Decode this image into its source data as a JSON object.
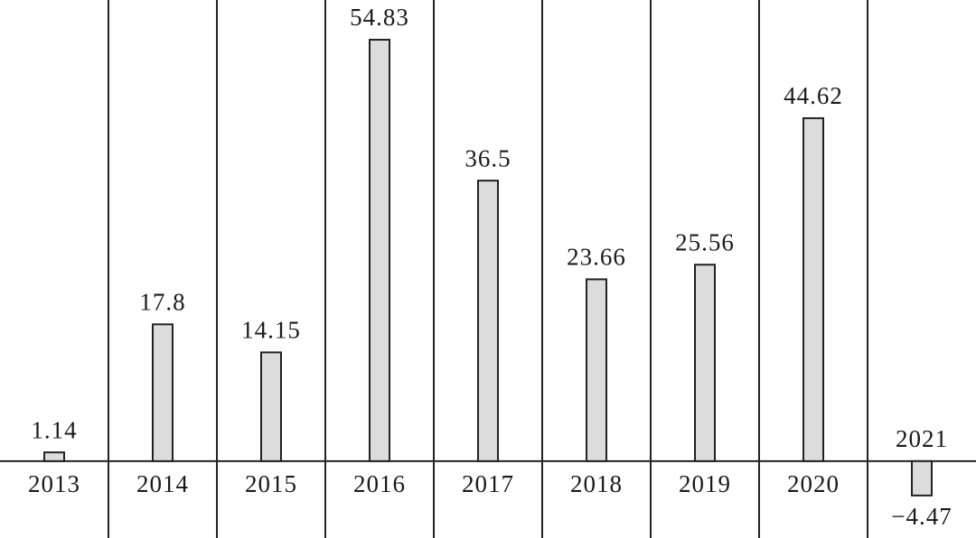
{
  "chart_data": {
    "type": "bar",
    "categories": [
      "2013",
      "2014",
      "2015",
      "2016",
      "2017",
      "2018",
      "2019",
      "2020",
      "2021"
    ],
    "values": [
      1.14,
      17.8,
      14.15,
      54.83,
      36.5,
      23.66,
      25.56,
      44.62,
      -4.47
    ],
    "value_labels": [
      "1.14",
      "17.8",
      "14.15",
      "54.83",
      "36.5",
      "23.66",
      "25.56",
      "44.62",
      "−4.47"
    ],
    "color": "#dcdcdc",
    "ylim": [
      -10,
      60
    ]
  }
}
